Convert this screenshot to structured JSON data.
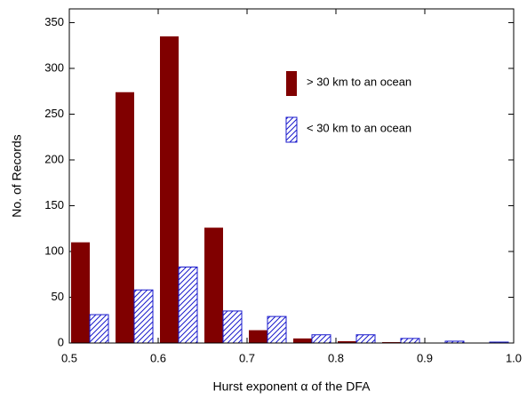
{
  "chart_data": {
    "type": "histogram",
    "xlabel": "Hurst exponent α of the DFA",
    "ylabel": "No. of Records",
    "bins": [
      0.5,
      0.55,
      0.6,
      0.65,
      0.7,
      0.75,
      0.8,
      0.85,
      0.9,
      0.95,
      1.0
    ],
    "series": [
      {
        "name": "> 30 km to an ocean",
        "color": "#800000",
        "hatched": false,
        "values": [
          110,
          274,
          335,
          126,
          14,
          5,
          2,
          1,
          0,
          0
        ]
      },
      {
        "name": "< 30 km to an ocean",
        "color": "#1a1acc",
        "hatched": true,
        "values": [
          31,
          58,
          83,
          35,
          29,
          9,
          9,
          5,
          2,
          1
        ]
      }
    ],
    "xlim": [
      0.5,
      1.0
    ],
    "xticks": [
      0.5,
      0.6,
      0.7,
      0.8,
      0.9,
      {
        "value": 1.0,
        "label": "1.0"
      }
    ],
    "ylim": [
      0,
      365
    ],
    "yticks": [
      0,
      50,
      100,
      150,
      200,
      250,
      300,
      350
    ],
    "legend": "upper right"
  }
}
